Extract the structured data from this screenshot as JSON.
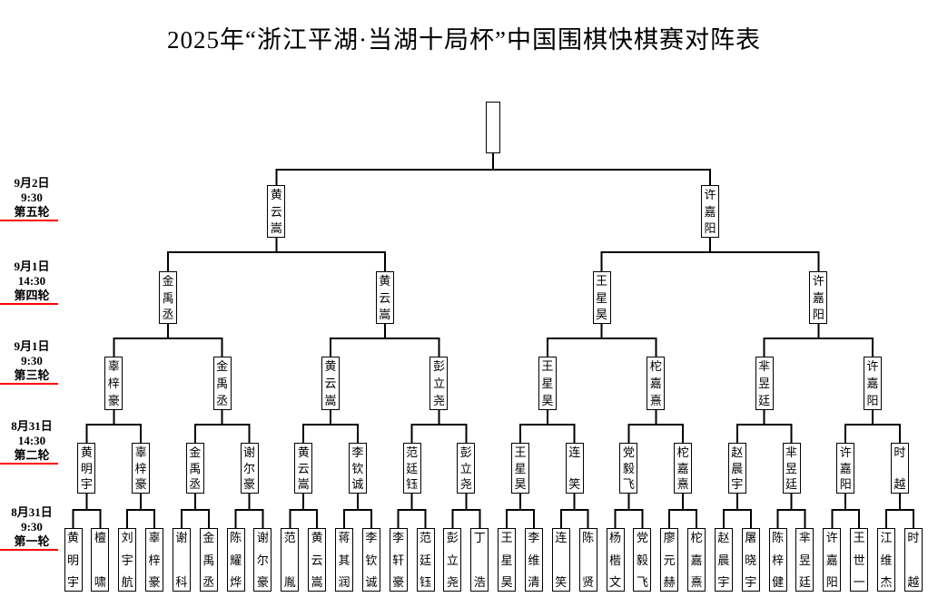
{
  "title": "2025年“浙江平湖·当湖十局杯”中国围棋快棋赛对阵表",
  "accent_color": "#ff0000",
  "round_labels": [
    {
      "date": "8月31日",
      "time": "9:30",
      "round": "第一轮"
    },
    {
      "date": "8月31日",
      "time": "14:30",
      "round": "第二轮"
    },
    {
      "date": "9月1日",
      "time": "9:30",
      "round": "第三轮"
    },
    {
      "date": "9月1日",
      "time": "14:30",
      "round": "第四轮"
    },
    {
      "date": "9月2日",
      "time": "9:30",
      "round": "第五轮"
    }
  ],
  "bracket": {
    "rounds": [
      {
        "label": "第一轮",
        "players": [
          "黄明宇",
          "檀啸",
          "刘宇航",
          "辜梓豪",
          "谢科",
          "金禹丞",
          "陈耀烨",
          "谢尔豪",
          "范胤",
          "黄云嵩",
          "蒋其润",
          "李钦诚",
          "李轩豪",
          "范廷钰",
          "彭立尧",
          "丁浩",
          "王星昊",
          "李维清",
          "连笑",
          "陈贤",
          "杨楷文",
          "党毅飞",
          "廖元赫",
          "柁嘉熹",
          "赵晨宇",
          "屠晓宇",
          "陈梓健",
          "芈昱廷",
          "许嘉阳",
          "王世一",
          "江维杰",
          "时越"
        ]
      },
      {
        "label": "第二轮",
        "players": [
          "黄明宇",
          "辜梓豪",
          "金禹丞",
          "谢尔豪",
          "黄云嵩",
          "李钦诚",
          "范廷钰",
          "彭立尧",
          "王星昊",
          "连笑",
          "党毅飞",
          "柁嘉熹",
          "赵晨宇",
          "芈昱廷",
          "许嘉阳",
          "时越"
        ]
      },
      {
        "label": "第三轮",
        "players": [
          "辜梓豪",
          "金禹丞",
          "黄云嵩",
          "彭立尧",
          "王星昊",
          "柁嘉熹",
          "芈昱廷",
          "许嘉阳"
        ]
      },
      {
        "label": "第四轮",
        "players": [
          "金禹丞",
          "黄云嵩",
          "王星昊",
          "许嘉阳"
        ]
      },
      {
        "label": "第五轮",
        "players": [
          "黄云嵩",
          "许嘉阳"
        ]
      }
    ],
    "champion": ""
  }
}
